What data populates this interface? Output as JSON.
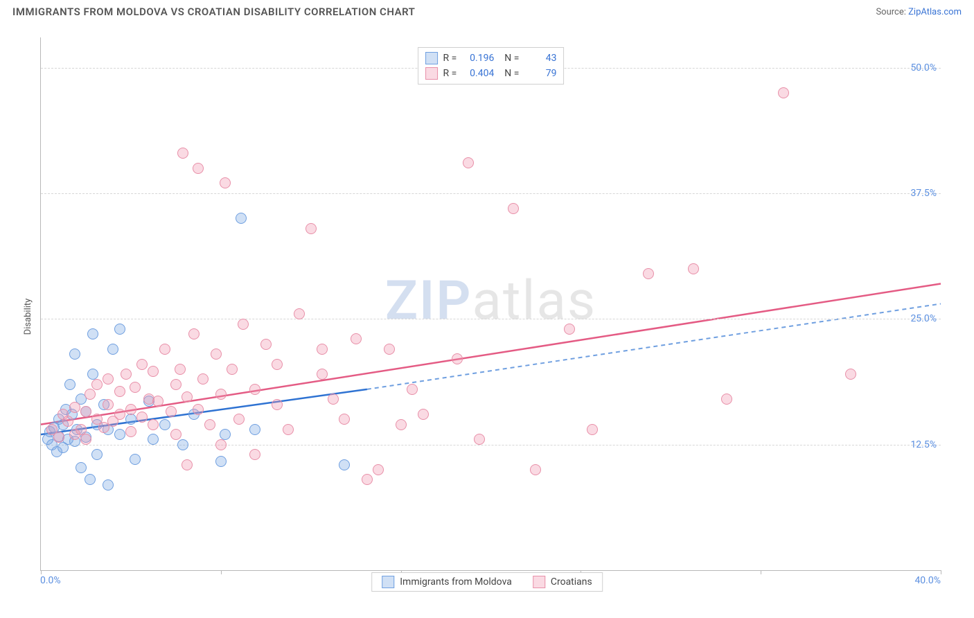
{
  "title": "IMMIGRANTS FROM MOLDOVA VS CROATIAN DISABILITY CORRELATION CHART",
  "source_label": "Source:",
  "source_name": "ZipAtlas.com",
  "ylabel": "Disability",
  "watermark_a": "ZIP",
  "watermark_b": "atlas",
  "chart": {
    "type": "scatter",
    "xlim": [
      0,
      40
    ],
    "ylim": [
      0,
      53
    ],
    "x_ticks": [
      0,
      8,
      16,
      24,
      32,
      40
    ],
    "x_tick_labels": {
      "0": "0.0%",
      "40": "40.0%"
    },
    "y_grid": [
      12.5,
      25.0,
      37.5,
      50.0
    ],
    "y_labels": [
      "12.5%",
      "25.0%",
      "37.5%",
      "50.0%"
    ],
    "grid_color": "#d6d6d6",
    "axis_color": "#b8b8b8",
    "tick_label_color": "#5b8fe0",
    "background": "#ffffff"
  },
  "series": [
    {
      "name": "Immigrants from Moldova",
      "fill": "rgba(120,165,225,0.35)",
      "stroke": "#6f9fe0",
      "line_color": "#2e72d2",
      "line_dash_color": "#6f9fe0",
      "R": "0.196",
      "N": "43",
      "trend": {
        "x1": 0,
        "y1": 13.5,
        "x2_solid": 14.5,
        "y2_solid": 18.0,
        "x2": 40,
        "y2": 26.5
      },
      "points": [
        [
          0.3,
          13.0
        ],
        [
          0.4,
          13.8
        ],
        [
          0.5,
          12.5
        ],
        [
          0.6,
          14.2
        ],
        [
          0.7,
          11.8
        ],
        [
          0.8,
          13.3
        ],
        [
          0.8,
          15.0
        ],
        [
          1.0,
          12.2
        ],
        [
          1.0,
          14.5
        ],
        [
          1.1,
          16.0
        ],
        [
          1.2,
          13.0
        ],
        [
          1.3,
          18.5
        ],
        [
          1.4,
          15.5
        ],
        [
          1.5,
          12.8
        ],
        [
          1.5,
          21.5
        ],
        [
          1.6,
          14.0
        ],
        [
          1.8,
          17.0
        ],
        [
          1.8,
          10.2
        ],
        [
          2.0,
          15.8
        ],
        [
          2.0,
          13.2
        ],
        [
          2.2,
          9.0
        ],
        [
          2.3,
          19.5
        ],
        [
          2.3,
          23.5
        ],
        [
          2.5,
          14.5
        ],
        [
          2.5,
          11.5
        ],
        [
          2.8,
          16.5
        ],
        [
          3.0,
          14.0
        ],
        [
          3.0,
          8.5
        ],
        [
          3.2,
          22.0
        ],
        [
          3.5,
          13.5
        ],
        [
          3.5,
          24.0
        ],
        [
          4.0,
          15.0
        ],
        [
          4.2,
          11.0
        ],
        [
          4.8,
          16.8
        ],
        [
          5.0,
          13.0
        ],
        [
          5.5,
          14.5
        ],
        [
          6.3,
          12.5
        ],
        [
          6.8,
          15.5
        ],
        [
          8.2,
          13.5
        ],
        [
          8.9,
          35.0
        ],
        [
          9.5,
          14.0
        ],
        [
          13.5,
          10.5
        ],
        [
          8.0,
          10.8
        ]
      ]
    },
    {
      "name": "Croatians",
      "fill": "rgba(240,150,175,0.35)",
      "stroke": "#e88fa8",
      "line_color": "#e45b84",
      "R": "0.404",
      "N": "79",
      "trend": {
        "x1": 0,
        "y1": 14.5,
        "x2": 40,
        "y2": 28.5
      },
      "points": [
        [
          0.5,
          14.0
        ],
        [
          0.8,
          13.2
        ],
        [
          1.0,
          15.5
        ],
        [
          1.2,
          14.8
        ],
        [
          1.5,
          13.5
        ],
        [
          1.5,
          16.2
        ],
        [
          1.8,
          14.0
        ],
        [
          2.0,
          15.8
        ],
        [
          2.0,
          13.0
        ],
        [
          2.2,
          17.5
        ],
        [
          2.5,
          15.0
        ],
        [
          2.5,
          18.5
        ],
        [
          2.8,
          14.2
        ],
        [
          3.0,
          16.5
        ],
        [
          3.0,
          19.0
        ],
        [
          3.2,
          14.8
        ],
        [
          3.5,
          17.8
        ],
        [
          3.5,
          15.5
        ],
        [
          3.8,
          19.5
        ],
        [
          4.0,
          16.0
        ],
        [
          4.0,
          13.8
        ],
        [
          4.2,
          18.2
        ],
        [
          4.5,
          15.2
        ],
        [
          4.5,
          20.5
        ],
        [
          4.8,
          17.0
        ],
        [
          5.0,
          14.5
        ],
        [
          5.0,
          19.8
        ],
        [
          5.2,
          16.8
        ],
        [
          5.5,
          22.0
        ],
        [
          5.8,
          15.8
        ],
        [
          6.0,
          18.5
        ],
        [
          6.0,
          13.5
        ],
        [
          6.2,
          20.0
        ],
        [
          6.5,
          17.2
        ],
        [
          6.5,
          10.5
        ],
        [
          6.8,
          23.5
        ],
        [
          7.0,
          16.0
        ],
        [
          7.0,
          40.0
        ],
        [
          7.2,
          19.0
        ],
        [
          7.5,
          14.5
        ],
        [
          7.8,
          21.5
        ],
        [
          8.0,
          17.5
        ],
        [
          8.0,
          12.5
        ],
        [
          8.2,
          38.5
        ],
        [
          8.5,
          20.0
        ],
        [
          8.8,
          15.0
        ],
        [
          9.0,
          24.5
        ],
        [
          9.5,
          18.0
        ],
        [
          9.5,
          11.5
        ],
        [
          10.0,
          22.5
        ],
        [
          10.5,
          16.5
        ],
        [
          10.5,
          20.5
        ],
        [
          11.0,
          14.0
        ],
        [
          11.5,
          25.5
        ],
        [
          12.0,
          34.0
        ],
        [
          12.5,
          19.5
        ],
        [
          12.5,
          22.0
        ],
        [
          13.0,
          17.0
        ],
        [
          13.5,
          15.0
        ],
        [
          14.0,
          23.0
        ],
        [
          14.5,
          9.0
        ],
        [
          15.0,
          10.0
        ],
        [
          15.5,
          22.0
        ],
        [
          16.0,
          14.5
        ],
        [
          16.5,
          18.0
        ],
        [
          17.0,
          15.5
        ],
        [
          18.5,
          21.0
        ],
        [
          19.0,
          40.5
        ],
        [
          19.5,
          13.0
        ],
        [
          21.0,
          36.0
        ],
        [
          22.0,
          10.0
        ],
        [
          23.5,
          24.0
        ],
        [
          24.5,
          14.0
        ],
        [
          27.0,
          29.5
        ],
        [
          29.0,
          30.0
        ],
        [
          30.5,
          17.0
        ],
        [
          33.0,
          47.5
        ],
        [
          36.0,
          19.5
        ],
        [
          6.3,
          41.5
        ]
      ]
    }
  ],
  "stats_labels": {
    "R": "R =",
    "N": "N ="
  }
}
